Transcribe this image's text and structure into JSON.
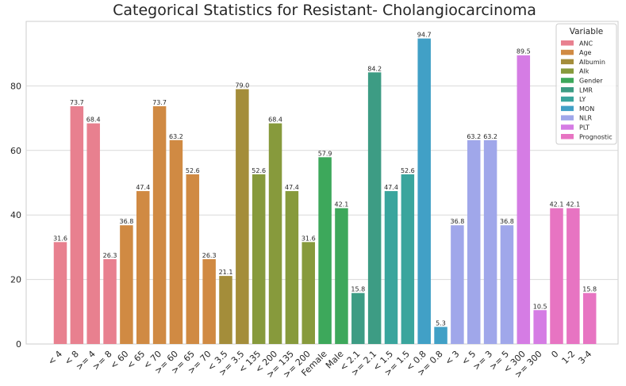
{
  "chart_data": {
    "type": "bar",
    "title": "Categorical Statistics for Resistant- Cholangiocarcinoma",
    "xlabel": "",
    "ylabel": "",
    "ylim": [
      0,
      100
    ],
    "yticks": [
      0,
      20,
      40,
      60,
      80
    ],
    "grid": true,
    "legend": {
      "title": "Variable",
      "placement": "top-right",
      "entries": [
        {
          "name": "ANC",
          "color": "#e8808f"
        },
        {
          "name": "Age",
          "color": "#d08a43"
        },
        {
          "name": "Albumin",
          "color": "#a48d3a"
        },
        {
          "name": "Alk",
          "color": "#879a3c"
        },
        {
          "name": "Gender",
          "color": "#3da85b"
        },
        {
          "name": "LMR",
          "color": "#3d9c84"
        },
        {
          "name": "LY",
          "color": "#3aa59d"
        },
        {
          "name": "MON",
          "color": "#41a0c6"
        },
        {
          "name": "NLR",
          "color": "#a0a7ea"
        },
        {
          "name": "PLT",
          "color": "#d57ce4"
        },
        {
          "name": "Prognostic",
          "color": "#e774c2"
        }
      ]
    },
    "bars": [
      {
        "category": "< 4",
        "variable": "ANC",
        "value": 31.6
      },
      {
        "category": "< 8",
        "variable": "ANC",
        "value": 73.7
      },
      {
        "category": ">= 4",
        "variable": "ANC",
        "value": 68.4
      },
      {
        "category": ">= 8",
        "variable": "ANC",
        "value": 26.3
      },
      {
        "category": "< 60",
        "variable": "Age",
        "value": 36.8
      },
      {
        "category": "< 65",
        "variable": "Age",
        "value": 47.4
      },
      {
        "category": "< 70",
        "variable": "Age",
        "value": 73.7
      },
      {
        "category": ">= 60",
        "variable": "Age",
        "value": 63.2
      },
      {
        "category": ">= 65",
        "variable": "Age",
        "value": 52.6
      },
      {
        "category": ">= 70",
        "variable": "Age",
        "value": 26.3
      },
      {
        "category": "< 3.5",
        "variable": "Albumin",
        "value": 21.1
      },
      {
        "category": ">= 3.5",
        "variable": "Albumin",
        "value": 79.0
      },
      {
        "category": "< 135",
        "variable": "Alk",
        "value": 52.6
      },
      {
        "category": "< 200",
        "variable": "Alk",
        "value": 68.4
      },
      {
        "category": ">= 135",
        "variable": "Alk",
        "value": 47.4
      },
      {
        "category": ">= 200",
        "variable": "Alk",
        "value": 31.6
      },
      {
        "category": "Female",
        "variable": "Gender",
        "value": 57.9
      },
      {
        "category": "Male",
        "variable": "Gender",
        "value": 42.1
      },
      {
        "category": "< 2.1",
        "variable": "LMR",
        "value": 15.8
      },
      {
        "category": ">= 2.1",
        "variable": "LMR",
        "value": 84.2
      },
      {
        "category": "< 1.5",
        "variable": "LY",
        "value": 47.4
      },
      {
        "category": ">= 1.5",
        "variable": "LY",
        "value": 52.6
      },
      {
        "category": "< 0.8",
        "variable": "MON",
        "value": 94.7
      },
      {
        "category": ">= 0.8",
        "variable": "MON",
        "value": 5.3
      },
      {
        "category": "< 3",
        "variable": "NLR",
        "value": 36.8
      },
      {
        "category": "< 5",
        "variable": "NLR",
        "value": 63.2
      },
      {
        "category": ">= 3",
        "variable": "NLR",
        "value": 63.2
      },
      {
        "category": ">= 5",
        "variable": "NLR",
        "value": 36.8
      },
      {
        "category": "< 300",
        "variable": "PLT",
        "value": 89.5
      },
      {
        "category": ">= 300",
        "variable": "PLT",
        "value": 10.5
      },
      {
        "category": "0",
        "variable": "Prognostic",
        "value": 42.1
      },
      {
        "category": "1-2",
        "variable": "Prognostic",
        "value": 42.1
      },
      {
        "category": "3-4",
        "variable": "Prognostic",
        "value": 15.8
      }
    ]
  }
}
